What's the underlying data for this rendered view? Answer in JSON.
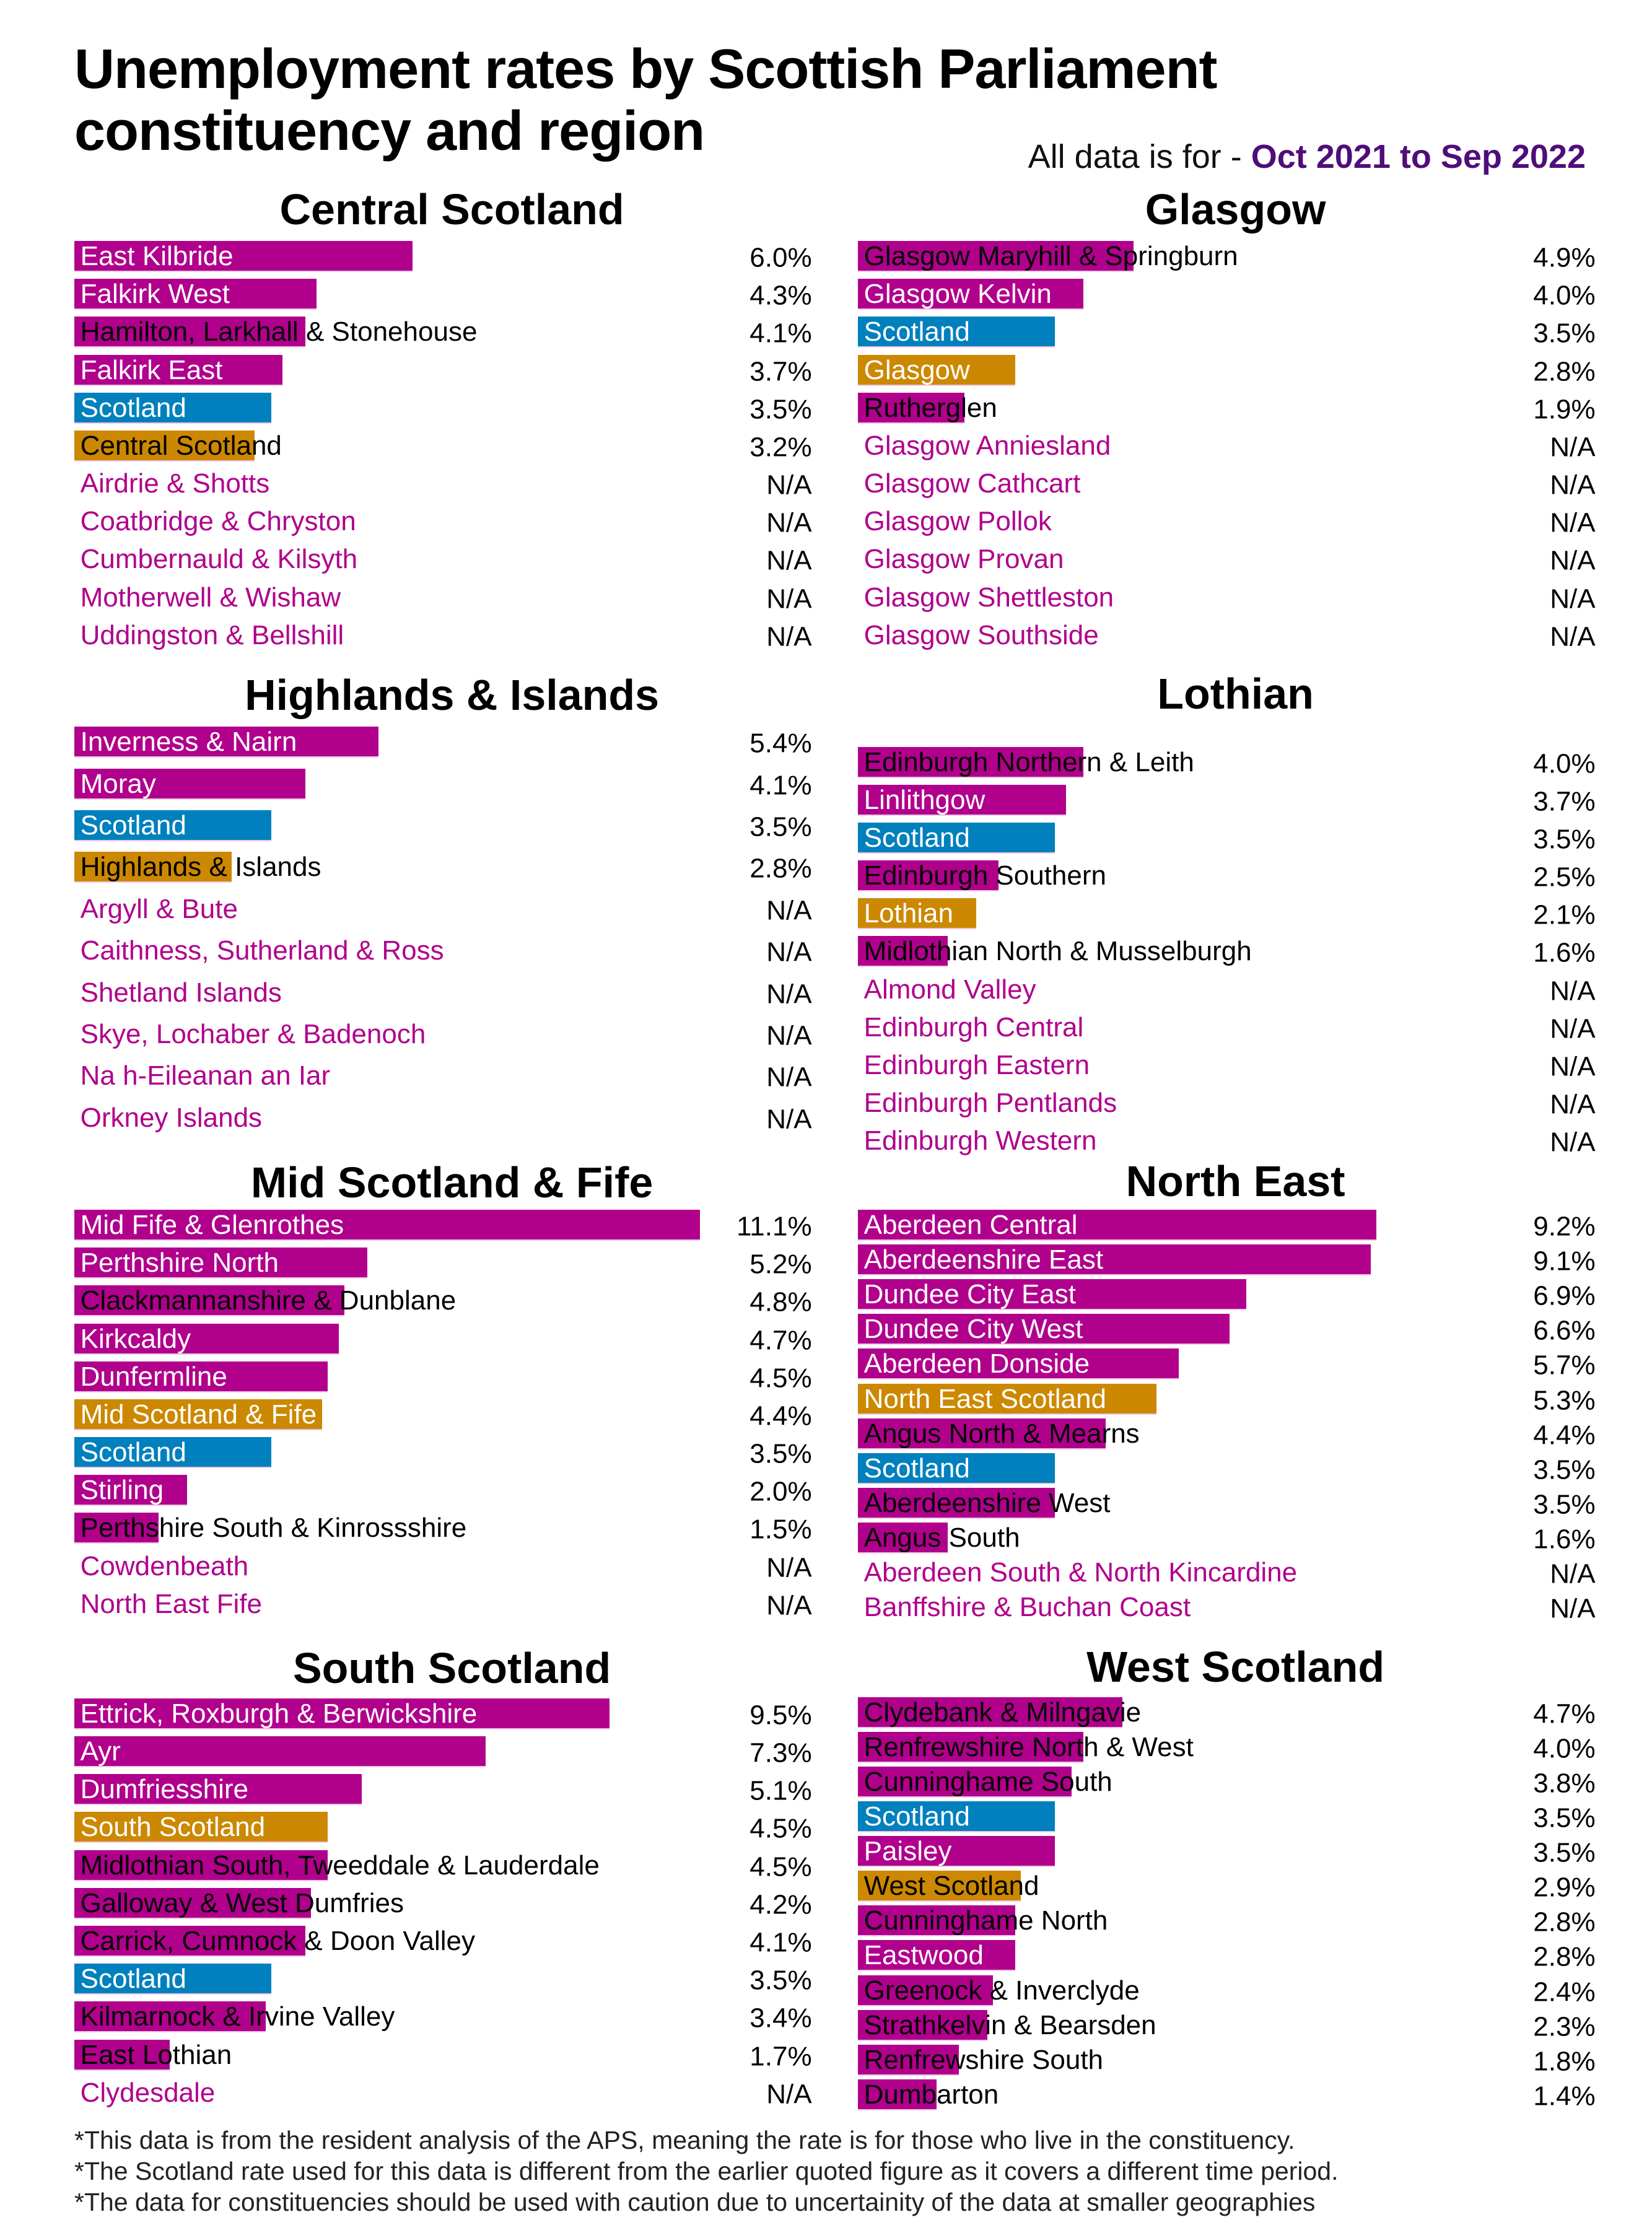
{
  "header": {
    "title_line1": "Unemployment rates by Scottish Parliament",
    "title_line2": "constituency and region",
    "subtitle_prefix": "All data is for - ",
    "subtitle_period": "Oct 2021 to Sep 2022"
  },
  "colors": {
    "constituency": "#b0008c",
    "scotland": "#0080bd",
    "region": "#cc8800",
    "na_label": "#b0008c",
    "period": "#4f0d7a"
  },
  "chart_data": {
    "type": "bar",
    "orientation": "horizontal",
    "unit": "%",
    "sections": [
      {
        "title": "Central Scotland",
        "rows": [
          {
            "label": "East Kilbride",
            "value": 6.0,
            "display": "6.0%",
            "kind": "constituency"
          },
          {
            "label": "Falkirk West",
            "value": 4.3,
            "display": "4.3%",
            "kind": "constituency"
          },
          {
            "label": "Hamilton, Larkhall & Stonehouse",
            "value": 4.1,
            "display": "4.1%",
            "kind": "constituency"
          },
          {
            "label": "Falkirk East",
            "value": 3.7,
            "display": "3.7%",
            "kind": "constituency"
          },
          {
            "label": "Scotland",
            "value": 3.5,
            "display": "3.5%",
            "kind": "scotland"
          },
          {
            "label": "Central Scotland",
            "value": 3.2,
            "display": "3.2%",
            "kind": "region"
          },
          {
            "label": "Airdrie & Shotts",
            "value": null,
            "display": "N/A",
            "kind": "constituency"
          },
          {
            "label": "Coatbridge & Chryston",
            "value": null,
            "display": "N/A",
            "kind": "constituency"
          },
          {
            "label": "Cumbernauld & Kilsyth",
            "value": null,
            "display": "N/A",
            "kind": "constituency"
          },
          {
            "label": "Motherwell & Wishaw",
            "value": null,
            "display": "N/A",
            "kind": "constituency"
          },
          {
            "label": "Uddingston & Bellshill",
            "value": null,
            "display": "N/A",
            "kind": "constituency"
          }
        ]
      },
      {
        "title": "Glasgow",
        "rows": [
          {
            "label": "Glasgow Maryhill & Springburn",
            "value": 4.9,
            "display": "4.9%",
            "kind": "constituency"
          },
          {
            "label": "Glasgow Kelvin",
            "value": 4.0,
            "display": "4.0%",
            "kind": "constituency"
          },
          {
            "label": "Scotland",
            "value": 3.5,
            "display": "3.5%",
            "kind": "scotland"
          },
          {
            "label": "Glasgow",
            "value": 2.8,
            "display": "2.8%",
            "kind": "region"
          },
          {
            "label": "Rutherglen",
            "value": 1.9,
            "display": "1.9%",
            "kind": "constituency"
          },
          {
            "label": "Glasgow Anniesland",
            "value": null,
            "display": "N/A",
            "kind": "constituency"
          },
          {
            "label": "Glasgow Cathcart",
            "value": null,
            "display": "N/A",
            "kind": "constituency"
          },
          {
            "label": "Glasgow Pollok",
            "value": null,
            "display": "N/A",
            "kind": "constituency"
          },
          {
            "label": "Glasgow Provan",
            "value": null,
            "display": "N/A",
            "kind": "constituency"
          },
          {
            "label": "Glasgow Shettleston",
            "value": null,
            "display": "N/A",
            "kind": "constituency"
          },
          {
            "label": "Glasgow Southside",
            "value": null,
            "display": "N/A",
            "kind": "constituency"
          }
        ]
      },
      {
        "title": "Highlands & Islands",
        "rows": [
          {
            "label": "Inverness & Nairn",
            "value": 5.4,
            "display": "5.4%",
            "kind": "constituency"
          },
          {
            "label": "Moray",
            "value": 4.1,
            "display": "4.1%",
            "kind": "constituency"
          },
          {
            "label": "Scotland",
            "value": 3.5,
            "display": "3.5%",
            "kind": "scotland"
          },
          {
            "label": "Highlands & Islands",
            "value": 2.8,
            "display": "2.8%",
            "kind": "region"
          },
          {
            "label": "Argyll & Bute",
            "value": null,
            "display": "N/A",
            "kind": "constituency"
          },
          {
            "label": "Caithness, Sutherland & Ross",
            "value": null,
            "display": "N/A",
            "kind": "constituency"
          },
          {
            "label": "Shetland Islands",
            "value": null,
            "display": "N/A",
            "kind": "constituency"
          },
          {
            "label": "Skye, Lochaber & Badenoch",
            "value": null,
            "display": "N/A",
            "kind": "constituency"
          },
          {
            "label": "Na h-Eileanan an Iar",
            "value": null,
            "display": "N/A",
            "kind": "constituency"
          },
          {
            "label": "Orkney Islands",
            "value": null,
            "display": "N/A",
            "kind": "constituency"
          }
        ]
      },
      {
        "title": "Lothian",
        "rows": [
          {
            "label": "Edinburgh Northern & Leith",
            "value": 4.0,
            "display": "4.0%",
            "kind": "constituency"
          },
          {
            "label": "Linlithgow",
            "value": 3.7,
            "display": "3.7%",
            "kind": "constituency"
          },
          {
            "label": "Scotland",
            "value": 3.5,
            "display": "3.5%",
            "kind": "scotland"
          },
          {
            "label": "Edinburgh Southern",
            "value": 2.5,
            "display": "2.5%",
            "kind": "constituency"
          },
          {
            "label": "Lothian",
            "value": 2.1,
            "display": "2.1%",
            "kind": "region"
          },
          {
            "label": "Midlothian North & Musselburgh",
            "value": 1.6,
            "display": "1.6%",
            "kind": "constituency"
          },
          {
            "label": "Almond Valley",
            "value": null,
            "display": "N/A",
            "kind": "constituency"
          },
          {
            "label": "Edinburgh Central",
            "value": null,
            "display": "N/A",
            "kind": "constituency"
          },
          {
            "label": "Edinburgh Eastern",
            "value": null,
            "display": "N/A",
            "kind": "constituency"
          },
          {
            "label": "Edinburgh Pentlands",
            "value": null,
            "display": "N/A",
            "kind": "constituency"
          },
          {
            "label": "Edinburgh Western",
            "value": null,
            "display": "N/A",
            "kind": "constituency"
          }
        ]
      },
      {
        "title": "Mid Scotland & Fife",
        "rows": [
          {
            "label": "Mid Fife & Glenrothes",
            "value": 11.1,
            "display": "11.1%",
            "kind": "constituency"
          },
          {
            "label": "Perthshire North",
            "value": 5.2,
            "display": "5.2%",
            "kind": "constituency"
          },
          {
            "label": "Clackmannanshire & Dunblane",
            "value": 4.8,
            "display": "4.8%",
            "kind": "constituency"
          },
          {
            "label": "Kirkcaldy",
            "value": 4.7,
            "display": "4.7%",
            "kind": "constituency"
          },
          {
            "label": "Dunfermline",
            "value": 4.5,
            "display": "4.5%",
            "kind": "constituency"
          },
          {
            "label": "Mid Scotland & Fife",
            "value": 4.4,
            "display": "4.4%",
            "kind": "region"
          },
          {
            "label": "Scotland",
            "value": 3.5,
            "display": "3.5%",
            "kind": "scotland"
          },
          {
            "label": "Stirling",
            "value": 2.0,
            "display": "2.0%",
            "kind": "constituency"
          },
          {
            "label": "Perthshire South & Kinrossshire",
            "value": 1.5,
            "display": "1.5%",
            "kind": "constituency"
          },
          {
            "label": "Cowdenbeath",
            "value": null,
            "display": "N/A",
            "kind": "constituency"
          },
          {
            "label": "North East Fife",
            "value": null,
            "display": "N/A",
            "kind": "constituency"
          }
        ]
      },
      {
        "title": "North East",
        "rows": [
          {
            "label": "Aberdeen Central",
            "value": 9.2,
            "display": "9.2%",
            "kind": "constituency"
          },
          {
            "label": "Aberdeenshire East",
            "value": 9.1,
            "display": "9.1%",
            "kind": "constituency"
          },
          {
            "label": "Dundee City East",
            "value": 6.9,
            "display": "6.9%",
            "kind": "constituency"
          },
          {
            "label": "Dundee City West",
            "value": 6.6,
            "display": "6.6%",
            "kind": "constituency"
          },
          {
            "label": "Aberdeen Donside",
            "value": 5.7,
            "display": "5.7%",
            "kind": "constituency"
          },
          {
            "label": "North East Scotland",
            "value": 5.3,
            "display": "5.3%",
            "kind": "region"
          },
          {
            "label": "Angus North & Mearns",
            "value": 4.4,
            "display": "4.4%",
            "kind": "constituency"
          },
          {
            "label": "Scotland",
            "value": 3.5,
            "display": "3.5%",
            "kind": "scotland"
          },
          {
            "label": "Aberdeenshire West",
            "value": 3.5,
            "display": "3.5%",
            "kind": "constituency"
          },
          {
            "label": "Angus South",
            "value": 1.6,
            "display": "1.6%",
            "kind": "constituency"
          },
          {
            "label": "Aberdeen South & North Kincardine",
            "value": null,
            "display": "N/A",
            "kind": "constituency"
          },
          {
            "label": "Banffshire & Buchan Coast",
            "value": null,
            "display": "N/A",
            "kind": "constituency"
          }
        ]
      },
      {
        "title": "South Scotland",
        "rows": [
          {
            "label": "Ettrick, Roxburgh & Berwickshire",
            "value": 9.5,
            "display": "9.5%",
            "kind": "constituency"
          },
          {
            "label": "Ayr",
            "value": 7.3,
            "display": "7.3%",
            "kind": "constituency"
          },
          {
            "label": "Dumfriesshire",
            "value": 5.1,
            "display": "5.1%",
            "kind": "constituency"
          },
          {
            "label": "South Scotland",
            "value": 4.5,
            "display": "4.5%",
            "kind": "region"
          },
          {
            "label": "Midlothian South, Tweeddale & Lauderdale",
            "value": 4.5,
            "display": "4.5%",
            "kind": "constituency"
          },
          {
            "label": "Galloway & West Dumfries",
            "value": 4.2,
            "display": "4.2%",
            "kind": "constituency"
          },
          {
            "label": "Carrick, Cumnock & Doon Valley",
            "value": 4.1,
            "display": "4.1%",
            "kind": "constituency"
          },
          {
            "label": "Scotland",
            "value": 3.5,
            "display": "3.5%",
            "kind": "scotland"
          },
          {
            "label": "Kilmarnock & Irvine Valley",
            "value": 3.4,
            "display": "3.4%",
            "kind": "constituency"
          },
          {
            "label": "East Lothian",
            "value": 1.7,
            "display": "1.7%",
            "kind": "constituency"
          },
          {
            "label": "Clydesdale",
            "value": null,
            "display": "N/A",
            "kind": "constituency"
          }
        ]
      },
      {
        "title": "West Scotland",
        "rows": [
          {
            "label": "Clydebank & Milngavie",
            "value": 4.7,
            "display": "4.7%",
            "kind": "constituency"
          },
          {
            "label": "Renfrewshire North & West",
            "value": 4.0,
            "display": "4.0%",
            "kind": "constituency"
          },
          {
            "label": "Cunninghame South",
            "value": 3.8,
            "display": "3.8%",
            "kind": "constituency"
          },
          {
            "label": "Scotland",
            "value": 3.5,
            "display": "3.5%",
            "kind": "scotland"
          },
          {
            "label": "Paisley",
            "value": 3.5,
            "display": "3.5%",
            "kind": "constituency"
          },
          {
            "label": "West Scotland",
            "value": 2.9,
            "display": "2.9%",
            "kind": "region"
          },
          {
            "label": "Cunninghame North",
            "value": 2.8,
            "display": "2.8%",
            "kind": "constituency"
          },
          {
            "label": "Eastwood",
            "value": 2.8,
            "display": "2.8%",
            "kind": "constituency"
          },
          {
            "label": "Greenock & Inverclyde",
            "value": 2.4,
            "display": "2.4%",
            "kind": "constituency"
          },
          {
            "label": "Strathkelvin & Bearsden",
            "value": 2.3,
            "display": "2.3%",
            "kind": "constituency"
          },
          {
            "label": "Renfrewshire South",
            "value": 1.8,
            "display": "1.8%",
            "kind": "constituency"
          },
          {
            "label": "Dumbarton",
            "value": 1.4,
            "display": "1.4%",
            "kind": "constituency"
          }
        ]
      }
    ]
  },
  "footer": {
    "notes": [
      "*This data is from the resident analysis of the APS, meaning the rate is for those who live in the constituency.",
      "*The Scotland rate used for this data is different from the earlier quoted figure as it covers a different time period.",
      "*The data for constituencies should be used with caution due to uncertainity of the data at smaller geographies"
    ]
  }
}
